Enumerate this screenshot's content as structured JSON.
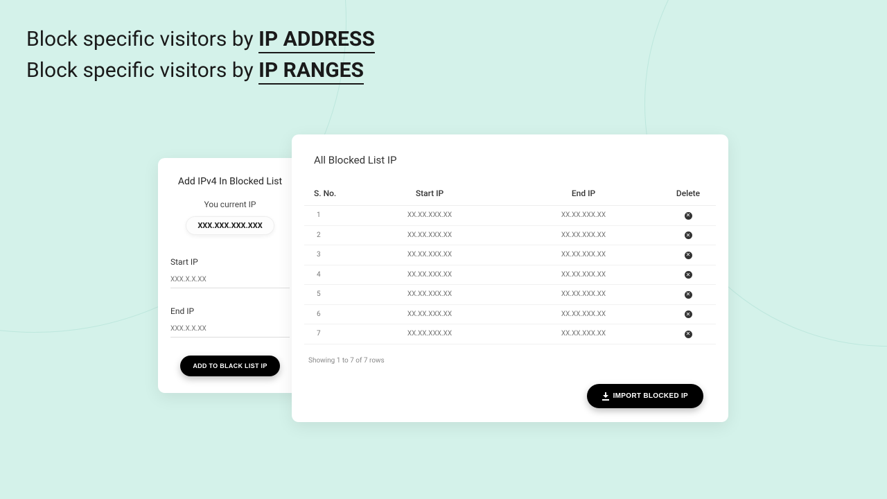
{
  "colors": {
    "page_bg": "#d4f2ea",
    "card_bg": "#ffffff",
    "text_primary": "#1a1a1a",
    "text_muted": "#888888",
    "btn_bg": "#000000",
    "btn_fg": "#ffffff",
    "border": "#eeeeee"
  },
  "headings": {
    "line1_prefix": "Block specific visitors by ",
    "line1_bold": "IP ADDRESS",
    "line2_prefix": "Block specific visitors by ",
    "line2_bold": "IP RANGES"
  },
  "add_panel": {
    "title": "Add IPv4 In Blocked List",
    "current_ip_label": "You current IP",
    "current_ip_value": "XXX.XXX.XXX.XXX",
    "start_ip_label": "Start IP",
    "start_ip_placeholder": "XXX.X.X.XX",
    "end_ip_label": "End IP",
    "end_ip_placeholder": "XXX.X.X.XX",
    "submit_label": "ADD TO BLACK LIST IP"
  },
  "list_panel": {
    "title": "All Blocked List IP",
    "columns": {
      "sno": "S. No.",
      "start": "Start IP",
      "end": "End IP",
      "delete": "Delete"
    },
    "rows": [
      {
        "n": "1",
        "start": "XX.XX.XXX.XX",
        "end": "XX.XX.XXX.XX"
      },
      {
        "n": "2",
        "start": "XX.XX.XXX.XX",
        "end": "XX.XX.XXX.XX"
      },
      {
        "n": "3",
        "start": "XX.XX.XXX.XX",
        "end": "XX.XX.XXX.XX"
      },
      {
        "n": "4",
        "start": "XX.XX.XXX.XX",
        "end": "XX.XX.XXX.XX"
      },
      {
        "n": "5",
        "start": "XX.XX.XXX.XX",
        "end": "XX.XX.XXX.XX"
      },
      {
        "n": "6",
        "start": "XX.XX.XXX.XX",
        "end": "XX.XX.XXX.XX"
      },
      {
        "n": "7",
        "start": "XX.XX.XXX.XX",
        "end": "XX.XX.XXX.XX"
      }
    ],
    "rows_info": "Showing 1 to 7 of 7 rows",
    "import_label": "IMPORT BLOCKED IP"
  }
}
